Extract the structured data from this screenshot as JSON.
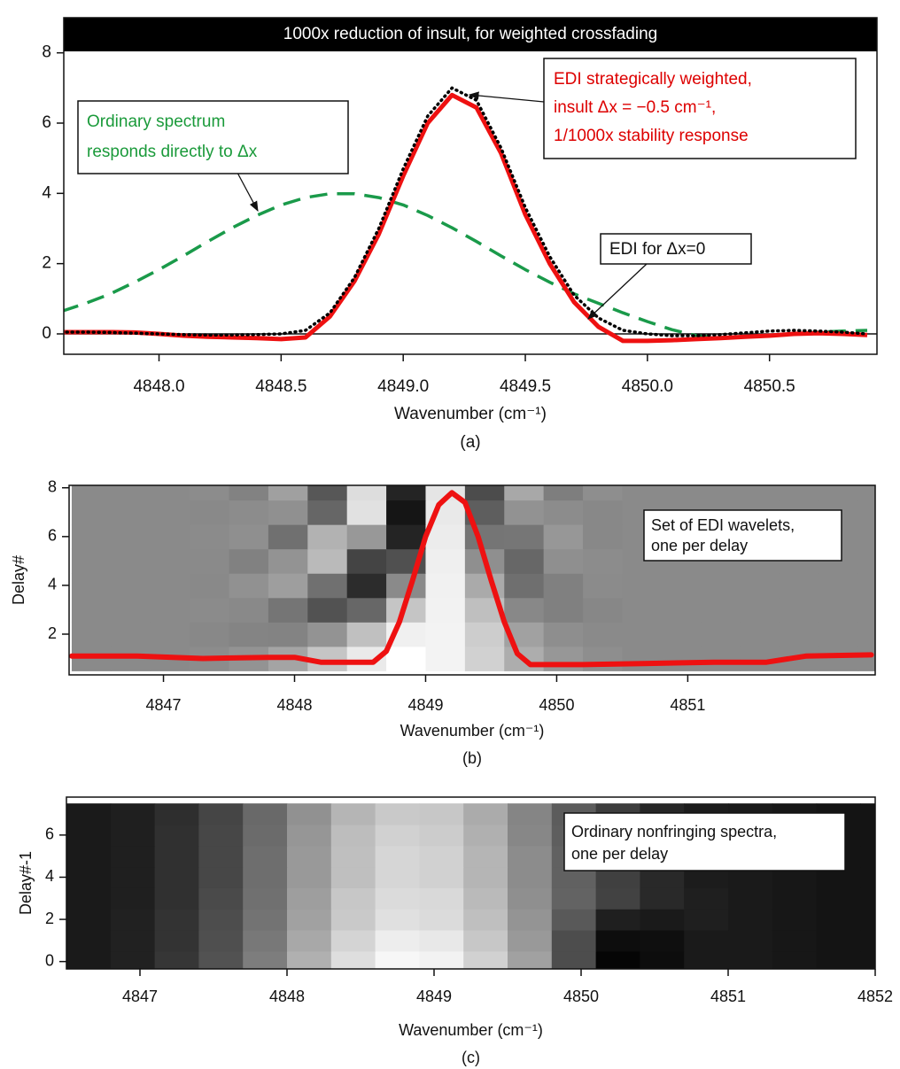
{
  "chart_data": [
    {
      "type": "line",
      "title": "1000x reduction of insult, for weighted crossfading",
      "xlabel": "Wavenumber (cm⁻¹)",
      "caption": "(a)",
      "xlim": [
        4847.61,
        4850.94
      ],
      "ylim": [
        -0.58,
        9.0
      ],
      "xticks": [
        {
          "value": 4848.0,
          "label": "4848.0"
        },
        {
          "value": 4848.5,
          "label": "4848.5"
        },
        {
          "value": 4849.0,
          "label": "4849.0"
        },
        {
          "value": 4849.5,
          "label": "4849.5"
        },
        {
          "value": 4850.0,
          "label": "4850.0"
        },
        {
          "value": 4850.5,
          "label": "4850.5"
        }
      ],
      "yticks": [
        0,
        2,
        4,
        6,
        8
      ],
      "x": [
        4847.6,
        4847.7,
        4847.8,
        4847.9,
        4848.0,
        4848.1,
        4848.2,
        4848.3,
        4848.4,
        4848.5,
        4848.6,
        4848.7,
        4848.8,
        4848.9,
        4849.0,
        4849.1,
        4849.2,
        4849.3,
        4849.4,
        4849.5,
        4849.6,
        4849.7,
        4849.8,
        4849.9,
        4850.0,
        4850.1,
        4850.2,
        4850.3,
        4850.4,
        4850.5,
        4850.6,
        4850.7,
        4850.8,
        4850.9
      ],
      "series": [
        {
          "color": "#1a9a4a",
          "style": "dashed",
          "values": [
            0.64,
            0.87,
            1.14,
            1.47,
            1.83,
            2.22,
            2.63,
            3.02,
            3.37,
            3.67,
            3.88,
            3.99,
            3.99,
            3.88,
            3.67,
            3.37,
            3.02,
            2.63,
            2.22,
            1.83,
            1.47,
            1.14,
            0.87,
            0.6,
            0.35,
            0.12,
            -0.05,
            -0.1,
            -0.08,
            -0.05,
            0.0,
            0.05,
            0.08,
            0.1
          ]
        },
        {
          "color": "#ee1111",
          "style": "solid",
          "values": [
            0.05,
            0.05,
            0.05,
            0.04,
            0.0,
            -0.05,
            -0.08,
            -0.1,
            -0.12,
            -0.15,
            -0.1,
            0.5,
            1.5,
            2.84,
            4.5,
            6.0,
            6.8,
            6.44,
            5.15,
            3.4,
            2.0,
            0.9,
            0.2,
            -0.2,
            -0.2,
            -0.18,
            -0.15,
            -0.12,
            -0.08,
            -0.05,
            0.0,
            0.02,
            0.0,
            -0.03
          ]
        },
        {
          "color": "#000000",
          "style": "dotted",
          "values": [
            0.05,
            0.05,
            0.04,
            0.02,
            0,
            -0.02,
            -0.03,
            -0.03,
            -0.02,
            0.0,
            0.1,
            0.6,
            1.6,
            3.0,
            4.7,
            6.2,
            7.0,
            6.65,
            5.3,
            3.6,
            2.2,
            1.1,
            0.45,
            0.1,
            0.0,
            -0.05,
            -0.05,
            -0.02,
            0.03,
            0.08,
            0.1,
            0.08,
            0.05,
            0.0
          ]
        }
      ],
      "annotations": [
        {
          "lines": [
            "Ordinary spectrum",
            "responds directly to Δx"
          ]
        },
        {
          "lines": [
            "EDI strategically weighted,",
            "insult Δx = −0.5 cm⁻¹,",
            "1/1000x stability response"
          ]
        },
        {
          "lines": [
            "EDI for Δx=0"
          ]
        }
      ]
    },
    {
      "type": "heatmap",
      "xlabel": "Wavenumber (cm⁻¹)",
      "ylabel": "Delay#",
      "caption": "(b)",
      "xlim": [
        4846.28,
        4852.43
      ],
      "ylim": [
        0.33,
        8.1
      ],
      "xticks": [
        4847,
        4848,
        4849,
        4850,
        4851
      ],
      "yticks": [
        2,
        4,
        6,
        8
      ],
      "zlim": [
        -1.18,
        1
      ],
      "x": [
        4846.45,
        4846.75,
        4847.05,
        4847.35,
        4847.65,
        4847.95,
        4848.25,
        4848.55,
        4848.85,
        4849.15,
        4849.45,
        4849.75,
        4850.05,
        4850.35,
        4850.65,
        4850.95,
        4851.25,
        4851.55,
        4851.85,
        4852.15,
        4852.45
      ],
      "y": [
        1,
        2,
        3,
        4,
        5,
        6,
        7,
        8
      ],
      "z": [
        [
          0,
          0,
          0,
          0.02,
          0.08,
          0.22,
          0.5,
          0.82,
          1,
          0.9,
          0.61,
          0.3,
          0.11,
          0.03,
          0,
          0,
          0,
          0,
          0,
          0,
          0
        ],
        [
          0,
          0,
          0,
          -0.02,
          -0.05,
          -0.06,
          0.08,
          0.46,
          0.87,
          0.9,
          0.57,
          0.2,
          0.03,
          0,
          0,
          0,
          0,
          0,
          0,
          0,
          0
        ],
        [
          0,
          0,
          0,
          0.01,
          -0.01,
          -0.18,
          -0.48,
          -0.3,
          0.5,
          0.89,
          0.45,
          -0.02,
          -0.09,
          -0.03,
          0,
          0,
          0,
          0,
          0,
          0,
          0
        ],
        [
          0,
          0,
          0,
          -0.01,
          0.06,
          0.17,
          -0.22,
          -0.8,
          0,
          0.88,
          0.27,
          -0.23,
          -0.09,
          0.01,
          0,
          0,
          0,
          0,
          0,
          0,
          0
        ],
        [
          0,
          0,
          0,
          0,
          -0.08,
          0.08,
          0.41,
          -0.6,
          -0.5,
          0.86,
          0.04,
          -0.3,
          0.04,
          0.02,
          0,
          0,
          0,
          0,
          0,
          0,
          0
        ],
        [
          0,
          0,
          0,
          0.01,
          0.04,
          -0.22,
          0.34,
          0.12,
          -0.87,
          0.84,
          -0.18,
          -0.17,
          0.11,
          -0.02,
          0,
          0,
          0,
          0,
          0,
          0,
          0
        ],
        [
          0,
          0,
          0,
          -0.01,
          0.02,
          0.05,
          -0.31,
          0.74,
          -1,
          0.81,
          -0.38,
          0.07,
          0.02,
          -0.02,
          0,
          0,
          0,
          0,
          0,
          0,
          0
        ],
        [
          0,
          0,
          0,
          0.02,
          -0.07,
          0.19,
          -0.44,
          0.71,
          -0.87,
          0.78,
          -0.53,
          0.26,
          -0.1,
          0.03,
          0,
          0,
          0,
          0,
          0,
          0,
          0
        ]
      ],
      "line": {
        "color": "#ee1111",
        "x": [
          4846.3,
          4846.8,
          4847.3,
          4847.8,
          4848.0,
          4848.2,
          4848.6,
          4848.7,
          4848.8,
          4848.9,
          4849.0,
          4849.1,
          4849.2,
          4849.3,
          4849.4,
          4849.5,
          4849.6,
          4849.7,
          4849.8,
          4850.2,
          4850.7,
          4851.2,
          4851.6,
          4851.9,
          4852.4
        ],
        "values": [
          1.1,
          1.1,
          1.0,
          1.05,
          1.05,
          0.85,
          0.85,
          1.3,
          2.5,
          4.2,
          6.0,
          7.3,
          7.8,
          7.4,
          6.0,
          4.2,
          2.5,
          1.2,
          0.75,
          0.75,
          0.8,
          0.85,
          0.85,
          1.1,
          1.15
        ]
      },
      "annotations": [
        {
          "lines": [
            "Set of EDI wavelets,",
            "one per delay"
          ]
        }
      ]
    },
    {
      "type": "heatmap",
      "xlabel": "Wavenumber (cm⁻¹)",
      "ylabel": "Delay#-1",
      "caption": "(c)",
      "xlim": [
        4846.5,
        4852.0
      ],
      "ylim": [
        -0.35,
        7.8
      ],
      "xticks": [
        4847,
        4848,
        4849,
        4850,
        4851,
        4852
      ],
      "yticks": [
        0,
        2,
        4,
        6
      ],
      "zlim": [
        0,
        1
      ],
      "x": [
        4846.65,
        4846.95,
        4847.25,
        4847.55,
        4847.85,
        4848.15,
        4848.45,
        4848.75,
        4849.05,
        4849.35,
        4849.65,
        4849.95,
        4850.25,
        4850.55,
        4850.85,
        4851.15,
        4851.45,
        4851.75,
        4852.05
      ],
      "y": [
        0,
        1,
        2,
        3,
        4,
        5,
        6,
        7
      ],
      "z": [
        [
          0.1,
          0.13,
          0.21,
          0.32,
          0.49,
          0.69,
          0.87,
          0.97,
          0.95,
          0.82,
          0.63,
          0.3,
          0.02,
          0.05,
          0.1,
          0.1,
          0.09,
          0.08,
          0.08
        ],
        [
          0.1,
          0.13,
          0.2,
          0.31,
          0.47,
          0.66,
          0.83,
          0.93,
          0.91,
          0.78,
          0.6,
          0.3,
          0.05,
          0.06,
          0.1,
          0.1,
          0.09,
          0.08,
          0.08
        ],
        [
          0.1,
          0.13,
          0.2,
          0.3,
          0.45,
          0.63,
          0.79,
          0.88,
          0.86,
          0.75,
          0.58,
          0.35,
          0.12,
          0.1,
          0.12,
          0.1,
          0.09,
          0.08,
          0.08
        ],
        [
          0.1,
          0.12,
          0.19,
          0.29,
          0.44,
          0.62,
          0.78,
          0.86,
          0.85,
          0.73,
          0.56,
          0.39,
          0.26,
          0.16,
          0.12,
          0.1,
          0.09,
          0.08,
          0.08
        ],
        [
          0.1,
          0.12,
          0.19,
          0.28,
          0.43,
          0.6,
          0.75,
          0.84,
          0.82,
          0.71,
          0.55,
          0.38,
          0.25,
          0.16,
          0.11,
          0.1,
          0.09,
          0.08,
          0.08
        ],
        [
          0.1,
          0.12,
          0.19,
          0.28,
          0.43,
          0.6,
          0.75,
          0.84,
          0.82,
          0.71,
          0.55,
          0.38,
          0.25,
          0.16,
          0.11,
          0.1,
          0.09,
          0.08,
          0.08
        ],
        [
          0.1,
          0.12,
          0.19,
          0.28,
          0.42,
          0.59,
          0.74,
          0.82,
          0.8,
          0.69,
          0.53,
          0.37,
          0.25,
          0.15,
          0.11,
          0.1,
          0.09,
          0.08,
          0.08
        ],
        [
          0.1,
          0.12,
          0.18,
          0.27,
          0.41,
          0.57,
          0.71,
          0.79,
          0.78,
          0.67,
          0.52,
          0.36,
          0.24,
          0.15,
          0.11,
          0.1,
          0.09,
          0.08,
          0.08
        ]
      ],
      "annotations": [
        {
          "lines": [
            "Ordinary nonfringing spectra,",
            "one per delay"
          ]
        }
      ]
    }
  ]
}
